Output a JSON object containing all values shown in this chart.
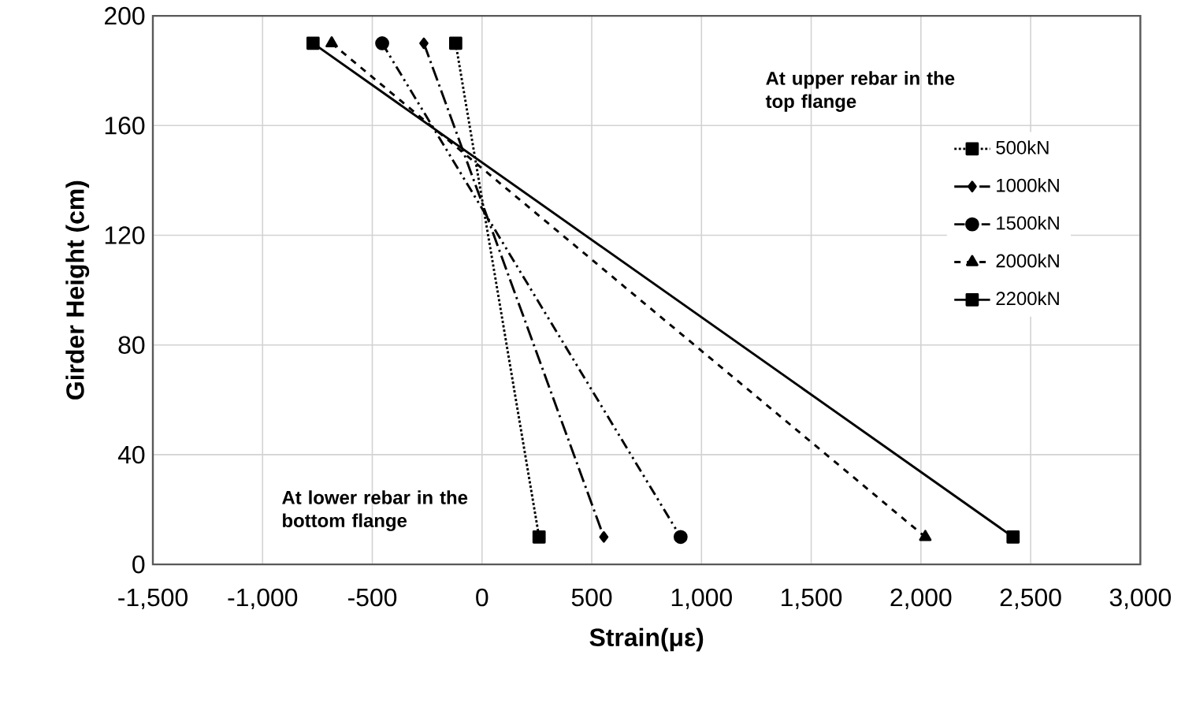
{
  "chart_data": {
    "type": "line",
    "xlabel": "Strain(με)",
    "ylabel": "Girder Height (cm)",
    "series": [
      {
        "name": "500kN",
        "color": "#000000",
        "marker": "square",
        "line_style": "dotted",
        "x": [
          -120,
          260
        ],
        "values": [
          190,
          10
        ]
      },
      {
        "name": "1000kN",
        "color": "#000000",
        "marker": "diamond",
        "line_style": "dashdot",
        "x": [
          -265,
          555
        ],
        "values": [
          190,
          10
        ]
      },
      {
        "name": "1500kN",
        "color": "#000000",
        "marker": "circle",
        "line_style": "dashdotdot",
        "x": [
          -455,
          905
        ],
        "values": [
          190,
          10
        ]
      },
      {
        "name": "2000kN",
        "color": "#000000",
        "marker": "triangle",
        "line_style": "dashed",
        "x": [
          -685,
          2020
        ],
        "values": [
          190,
          10
        ]
      },
      {
        "name": "2200kN",
        "color": "#000000",
        "marker": "square",
        "line_style": "solid",
        "x": [
          -770,
          2420
        ],
        "values": [
          190,
          10
        ]
      }
    ],
    "xlim": [
      -1500,
      3000
    ],
    "xticks": [
      {
        "value": -1500,
        "label": "-1,500"
      },
      {
        "value": -1000,
        "label": "-1,000"
      },
      {
        "value": -500,
        "label": "-500"
      },
      0,
      500,
      {
        "value": 1000,
        "label": "1,000"
      },
      {
        "value": 1500,
        "label": "1,500"
      },
      {
        "value": 2000,
        "label": "2,000"
      },
      {
        "value": 2500,
        "label": "2,500"
      },
      {
        "value": 3000,
        "label": "3,000"
      }
    ],
    "ylim": [
      0,
      200
    ],
    "yticks": [
      0,
      40,
      80,
      120,
      160,
      200
    ],
    "grid": true,
    "legend": "right",
    "annotations": [
      "At upper rebar in the top flange",
      "At lower rebar in the bottom flange"
    ]
  }
}
